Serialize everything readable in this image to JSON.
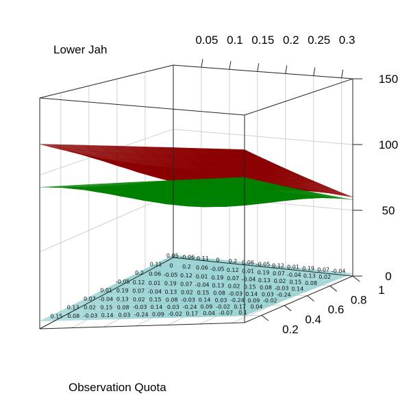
{
  "chart_data": {
    "type": "surface3d",
    "title": "",
    "xlabel": "Lower Jah",
    "ylabel": "Observation Quota",
    "zlabel": "",
    "x_ticks": [
      "0.05",
      "0.1",
      "0.15",
      "0.2",
      "0.25",
      "0.3"
    ],
    "y_ticks": [
      "0.2",
      "0.4",
      "0.6",
      "0.8",
      "1"
    ],
    "z_ticks": [
      "0",
      "50",
      "100",
      "150"
    ],
    "xlim": [
      0.0,
      0.32
    ],
    "ylim": [
      0.05,
      1.0
    ],
    "zlim": [
      0,
      150
    ],
    "grid": true,
    "surfaces": [
      {
        "color": "#8b0000",
        "x": [
          0.0,
          0.32
        ],
        "y": [
          0.05,
          1.0
        ],
        "z_corners": [
          120,
          125,
          70,
          60
        ]
      },
      {
        "color": "#008000",
        "x": [
          0.0,
          0.32
        ],
        "y": [
          0.05,
          1.0
        ],
        "z_corners": [
          92,
          105,
          60,
          58
        ]
      },
      {
        "color": "#8fcfcf",
        "x": [
          0.0,
          0.32
        ],
        "y": [
          0.05,
          1.0
        ],
        "z_corners": [
          5,
          5,
          2,
          2
        ]
      }
    ],
    "surface_labels": [
      "0.15",
      "0.19",
      "0.2",
      "0.18",
      "0.17",
      "0.14",
      "0.13",
      "0.12",
      "0.11",
      "0.1",
      "0.09",
      "0.08",
      "0.07",
      "0.06",
      "0.05",
      "0.04",
      "0.03",
      "0.02",
      "0.01",
      "0",
      "-0.01",
      "-0.02",
      "-0.03",
      "-0.04",
      "-0.05",
      "-0.06",
      "-0.07",
      "-0.24"
    ]
  }
}
